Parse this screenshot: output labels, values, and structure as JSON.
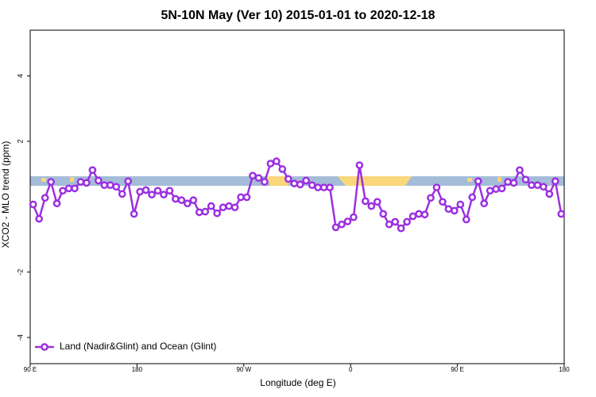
{
  "chart_data": {
    "type": "line",
    "title": "5N-10N May (Ver 10)   2015-01-01 to 2020-12-18",
    "x_label": "Longitude (deg E)",
    "y_label": "XCO2 - MLO trend (ppm)",
    "xlim": [
      90,
      540
    ],
    "xticks": [
      {
        "value": 90,
        "label": "90 E"
      },
      {
        "value": 180,
        "label": "180"
      },
      {
        "value": 270,
        "label": "90 W"
      },
      {
        "value": 360,
        "label": "0"
      },
      {
        "value": 450,
        "label": "90 E"
      },
      {
        "value": 540,
        "label": "180"
      }
    ],
    "ylim": [
      -4.8,
      5.4
    ],
    "yticks": [
      -4,
      -2,
      2,
      4
    ],
    "legend": "bottom-left",
    "x": [
      92.5,
      97.5,
      102.5,
      107.5,
      112.5,
      117.5,
      122.5,
      127.5,
      132.5,
      137.5,
      142.5,
      147.5,
      152.5,
      157.5,
      162.5,
      167.5,
      172.5,
      177.5,
      182.5,
      187.5,
      192.5,
      197.5,
      202.5,
      207.5,
      212.5,
      217.5,
      222.5,
      227.5,
      232.5,
      237.5,
      242.5,
      247.5,
      252.5,
      257.5,
      262.5,
      267.5,
      272.5,
      277.5,
      282.5,
      287.5,
      292.5,
      297.5,
      302.5,
      307.5,
      312.5,
      317.5,
      322.5,
      327.5,
      332.5,
      337.5,
      342.5,
      347.5,
      352.5,
      357.5,
      362.5,
      367.5,
      372.5,
      377.5,
      382.5,
      387.5,
      392.5,
      397.5,
      402.5,
      407.5,
      412.5,
      417.5,
      422.5,
      427.5,
      432.5,
      437.5,
      442.5,
      447.5,
      452.5,
      457.5,
      462.5,
      467.5,
      472.5,
      477.5,
      482.5,
      487.5,
      492.5,
      497.5,
      502.5,
      507.5,
      512.5,
      517.5,
      522.5,
      527.5,
      532.5,
      537.5
    ],
    "series": [
      {
        "name": "Land (Nadir&Glint) and Ocean (Glint)",
        "color": "#9b30e0",
        "values": [
          0.07,
          -0.37,
          0.27,
          0.76,
          0.1,
          0.49,
          0.56,
          0.56,
          0.76,
          0.73,
          1.12,
          0.8,
          0.66,
          0.66,
          0.61,
          0.39,
          0.78,
          -0.22,
          0.46,
          0.51,
          0.37,
          0.49,
          0.37,
          0.49,
          0.24,
          0.2,
          0.1,
          0.2,
          -0.17,
          -0.15,
          0.02,
          -0.2,
          -0.02,
          0.02,
          -0.02,
          0.29,
          0.29,
          0.95,
          0.88,
          0.76,
          1.32,
          1.39,
          1.15,
          0.85,
          0.71,
          0.68,
          0.8,
          0.66,
          0.59,
          0.59,
          0.59,
          -0.63,
          -0.54,
          -0.45,
          -0.32,
          1.27,
          0.17,
          0.02,
          0.15,
          -0.22,
          -0.54,
          -0.46,
          -0.66,
          -0.46,
          -0.29,
          -0.22,
          -0.24,
          0.27,
          0.59,
          0.15,
          -0.07,
          -0.12,
          0.07,
          -0.39,
          0.29,
          0.78,
          0.1,
          0.49,
          0.54,
          0.56,
          0.76,
          0.73,
          1.12,
          0.83,
          0.66,
          0.66,
          0.61,
          0.39,
          0.78,
          -0.22
        ]
      }
    ]
  }
}
